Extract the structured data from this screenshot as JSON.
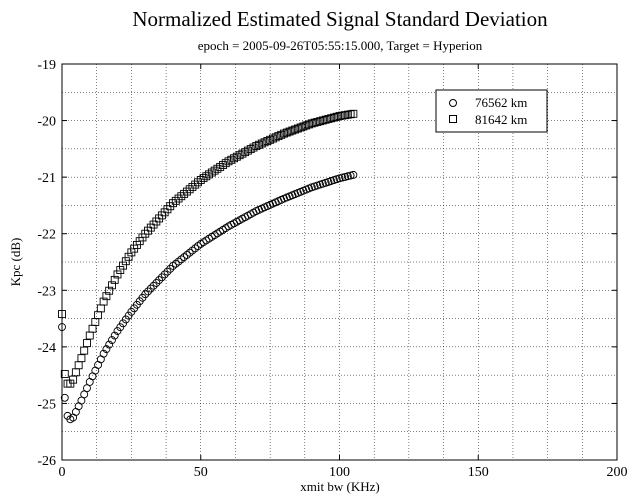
{
  "chart_data": {
    "type": "scatter",
    "title": "Normalized Estimated Signal Standard Deviation",
    "subtitle": "epoch = 2005-09-26T05:55:15.000, Target = Hyperion",
    "xlabel": "xmit bw (KHz)",
    "ylabel": "Kpc (dB)",
    "xlim": [
      0,
      200
    ],
    "ylim": [
      -26,
      -19
    ],
    "xticks": [
      0,
      50,
      100,
      150,
      200
    ],
    "yticks": [
      -26,
      -25,
      -24,
      -23,
      -22,
      -21,
      -20,
      -19
    ],
    "grid": true,
    "legend_position": "top-right",
    "series": [
      {
        "name": "76562 km",
        "marker": "circle",
        "x": [
          0,
          1,
          2,
          3,
          4,
          5,
          7,
          10,
          15,
          20,
          25,
          30,
          40,
          50,
          60,
          70,
          80,
          90,
          100,
          105
        ],
        "y": [
          -23.65,
          -24.9,
          -25.22,
          -25.28,
          -25.25,
          -25.15,
          -24.95,
          -24.62,
          -24.12,
          -23.72,
          -23.38,
          -23.07,
          -22.57,
          -22.18,
          -21.87,
          -21.6,
          -21.38,
          -21.18,
          -21.02,
          -20.96
        ]
      },
      {
        "name": "81642 km",
        "marker": "square",
        "x": [
          0,
          1,
          2,
          3,
          4,
          5,
          7,
          10,
          15,
          20,
          25,
          30,
          40,
          50,
          60,
          70,
          80,
          90,
          100,
          105
        ],
        "y": [
          -23.42,
          -24.48,
          -24.65,
          -24.65,
          -24.58,
          -24.45,
          -24.2,
          -23.8,
          -23.2,
          -22.72,
          -22.33,
          -22.0,
          -21.46,
          -21.05,
          -20.72,
          -20.45,
          -20.23,
          -20.05,
          -19.92,
          -19.88
        ]
      }
    ]
  }
}
